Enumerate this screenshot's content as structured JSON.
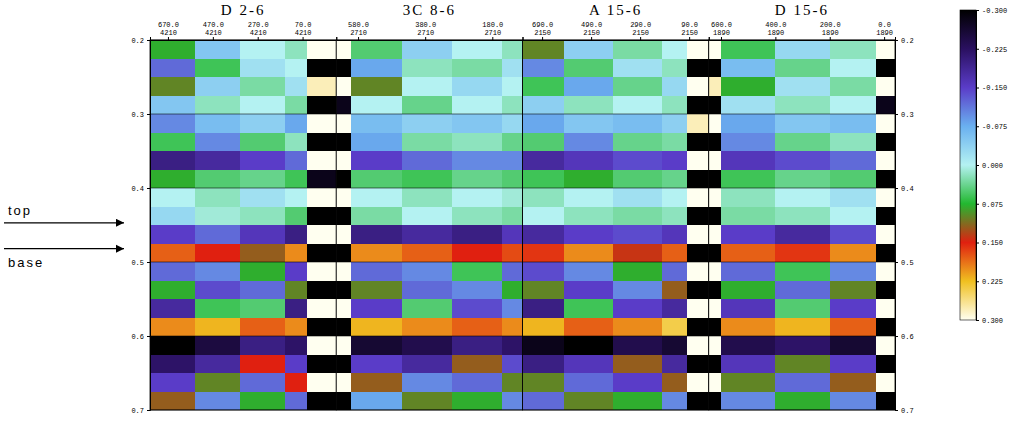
{
  "chart_data": {
    "type": "heatmap",
    "grid": true,
    "ylim": [
      0.2,
      0.7
    ],
    "yticks": [
      0.2,
      0.3,
      0.4,
      0.5,
      0.6,
      0.7
    ],
    "time_edges": [
      0.2,
      0.225,
      0.25,
      0.275,
      0.3,
      0.325,
      0.35,
      0.375,
      0.4,
      0.425,
      0.45,
      0.475,
      0.5,
      0.525,
      0.55,
      0.575,
      0.6,
      0.625,
      0.65,
      0.675,
      0.7
    ],
    "annotations": [
      {
        "text": "top",
        "y": 0.447
      },
      {
        "text": "base",
        "y": 0.482
      }
    ],
    "colorbar": {
      "range": [
        -0.3,
        0.3
      ],
      "ticks": [
        {
          "value": -0.3,
          "label": "-0.300"
        },
        {
          "value": -0.225,
          "label": "-0.225"
        },
        {
          "value": -0.15,
          "label": "-0.150"
        },
        {
          "value": -0.075,
          "label": "-0.075"
        },
        {
          "value": 0,
          "label": "0.000"
        },
        {
          "value": 0.075,
          "label": "0.075"
        },
        {
          "value": 0.15,
          "label": "0.150"
        },
        {
          "value": 0.225,
          "label": "0.225"
        },
        {
          "value": 0.3,
          "label": "0.300"
        }
      ]
    },
    "panels": [
      {
        "title": "D 2-6",
        "cdp": 4210,
        "xlim": [
          750,
          -80
        ],
        "xticks": [
          {
            "value": 670,
            "label": "670.0"
          },
          {
            "value": 470,
            "label": "470.0"
          },
          {
            "value": 270,
            "label": "270.0"
          },
          {
            "value": 70,
            "label": "70.0"
          }
        ],
        "offset_edges": [
          750,
          550,
          350,
          150,
          50,
          -80
        ],
        "cells": [
          [
            0.08,
            -0.05,
            0.0,
            0.02,
            0.3
          ],
          [
            -0.12,
            0.06,
            -0.02,
            0.0,
            -0.3
          ],
          [
            0.1,
            -0.04,
            0.03,
            -0.02,
            0.28
          ],
          [
            -0.05,
            0.02,
            0.0,
            0.03,
            -0.3
          ],
          [
            -0.1,
            -0.06,
            -0.04,
            -0.08,
            0.3
          ],
          [
            0.06,
            -0.1,
            0.05,
            0.02,
            -0.3
          ],
          [
            -0.2,
            -0.18,
            -0.15,
            -0.12,
            0.3
          ],
          [
            0.08,
            0.05,
            0.04,
            0.06,
            -0.28
          ],
          [
            0.0,
            0.02,
            -0.02,
            0.0,
            0.3
          ],
          [
            -0.03,
            0.01,
            0.02,
            0.05,
            -0.3
          ],
          [
            -0.15,
            -0.12,
            -0.16,
            -0.2,
            0.3
          ],
          [
            0.18,
            0.15,
            0.12,
            0.2,
            -0.3
          ],
          [
            -0.12,
            -0.1,
            0.08,
            -0.15,
            0.3
          ],
          [
            0.08,
            -0.14,
            -0.12,
            0.1,
            -0.3
          ],
          [
            -0.18,
            0.06,
            0.05,
            -0.2,
            0.3
          ],
          [
            0.2,
            0.22,
            0.18,
            0.2,
            -0.3
          ],
          [
            -0.3,
            -0.25,
            -0.2,
            -0.22,
            0.3
          ],
          [
            -0.22,
            -0.18,
            0.15,
            -0.15,
            -0.3
          ],
          [
            -0.15,
            0.1,
            -0.12,
            0.15,
            0.3
          ],
          [
            0.12,
            -0.1,
            0.08,
            -0.12,
            -0.3
          ]
        ]
      },
      {
        "title": "3C 8-6",
        "cdp": 2710,
        "xlim": [
          645,
          90
        ],
        "xticks": [
          {
            "value": 580,
            "label": "580.0"
          },
          {
            "value": 380,
            "label": "380.0"
          },
          {
            "value": 180,
            "label": "180.0"
          }
        ],
        "offset_edges": [
          645,
          600,
          450,
          300,
          150,
          90
        ],
        "cells": [
          [
            0.3,
            0.05,
            -0.04,
            0.0,
            0.02
          ],
          [
            -0.3,
            -0.08,
            0.02,
            0.03,
            -0.02
          ],
          [
            0.3,
            0.1,
            0.0,
            -0.03,
            0.0
          ],
          [
            -0.28,
            0.0,
            0.04,
            0.0,
            0.02
          ],
          [
            0.3,
            -0.06,
            -0.04,
            -0.05,
            -0.03
          ],
          [
            -0.3,
            -0.08,
            0.03,
            0.02,
            0.04
          ],
          [
            0.3,
            -0.15,
            -0.12,
            -0.1,
            -0.1
          ],
          [
            -0.3,
            0.05,
            0.06,
            0.04,
            0.05
          ],
          [
            0.3,
            0.0,
            0.02,
            0.0,
            0.01
          ],
          [
            -0.3,
            0.03,
            0.0,
            0.02,
            0.03
          ],
          [
            0.3,
            -0.2,
            -0.18,
            -0.2,
            -0.16
          ],
          [
            -0.3,
            0.2,
            0.18,
            0.15,
            0.17
          ],
          [
            0.3,
            -0.12,
            -0.1,
            0.06,
            -0.12
          ],
          [
            -0.3,
            0.1,
            -0.12,
            -0.1,
            0.08
          ],
          [
            0.3,
            -0.15,
            0.05,
            -0.14,
            -0.1
          ],
          [
            -0.3,
            0.22,
            0.2,
            0.18,
            0.2
          ],
          [
            0.3,
            -0.26,
            -0.24,
            -0.2,
            -0.22
          ],
          [
            -0.3,
            -0.15,
            -0.18,
            0.12,
            -0.14
          ],
          [
            0.3,
            0.12,
            -0.1,
            -0.12,
            0.1
          ],
          [
            -0.3,
            -0.08,
            0.1,
            0.08,
            -0.1
          ]
        ]
      },
      {
        "title": "A 15-6",
        "cdp": 2150,
        "xlim": [
          770,
          10
        ],
        "xticks": [
          {
            "value": 690,
            "label": "690.0"
          },
          {
            "value": 490,
            "label": "490.0"
          },
          {
            "value": 290,
            "label": "290.0"
          },
          {
            "value": 90,
            "label": "90.0"
          }
        ],
        "offset_edges": [
          770,
          600,
          400,
          200,
          100,
          10
        ],
        "cells": [
          [
            0.1,
            -0.04,
            0.03,
            0.0,
            0.3
          ],
          [
            -0.1,
            0.05,
            -0.02,
            0.02,
            -0.3
          ],
          [
            0.06,
            -0.08,
            0.04,
            -0.03,
            0.3
          ],
          [
            -0.04,
            0.02,
            0.0,
            0.02,
            -0.3
          ],
          [
            -0.08,
            -0.05,
            -0.06,
            -0.04,
            0.28
          ],
          [
            0.05,
            -0.1,
            0.04,
            0.03,
            -0.3
          ],
          [
            -0.18,
            -0.16,
            -0.14,
            -0.15,
            0.3
          ],
          [
            0.06,
            0.08,
            0.05,
            0.04,
            -0.3
          ],
          [
            0.02,
            0.0,
            -0.02,
            0.0,
            0.3
          ],
          [
            0.0,
            0.02,
            0.03,
            0.02,
            -0.3
          ],
          [
            -0.18,
            -0.15,
            -0.14,
            -0.16,
            0.3
          ],
          [
            0.16,
            0.2,
            0.14,
            0.18,
            -0.3
          ],
          [
            -0.14,
            -0.1,
            0.08,
            -0.12,
            0.3
          ],
          [
            0.1,
            -0.15,
            -0.1,
            0.12,
            -0.3
          ],
          [
            -0.2,
            0.06,
            -0.15,
            -0.18,
            0.3
          ],
          [
            0.22,
            0.18,
            0.2,
            0.24,
            -0.3
          ],
          [
            -0.28,
            -0.3,
            -0.24,
            -0.26,
            0.3
          ],
          [
            -0.2,
            -0.16,
            0.12,
            -0.18,
            -0.3
          ],
          [
            0.1,
            -0.12,
            -0.15,
            0.12,
            0.3
          ],
          [
            -0.12,
            0.1,
            0.08,
            -0.1,
            -0.3
          ]
        ]
      },
      {
        "title": "D 15-6",
        "cdp": 1890,
        "xlim": [
          645,
          -40
        ],
        "xticks": [
          {
            "value": 600,
            "label": "600.0"
          },
          {
            "value": 400,
            "label": "400.0"
          },
          {
            "value": 200,
            "label": "200.0"
          },
          {
            "value": 0,
            "label": "0.0"
          }
        ],
        "offset_edges": [
          645,
          600,
          400,
          200,
          30,
          -40
        ],
        "cells": [
          [
            0.3,
            0.06,
            -0.03,
            0.02,
            0.3
          ],
          [
            -0.3,
            -0.06,
            0.04,
            0.0,
            -0.3
          ],
          [
            0.28,
            0.08,
            -0.02,
            0.03,
            0.3
          ],
          [
            -0.3,
            -0.02,
            0.02,
            0.0,
            -0.28
          ],
          [
            0.3,
            -0.08,
            -0.05,
            -0.06,
            0.3
          ],
          [
            -0.3,
            -0.1,
            0.04,
            0.02,
            -0.3
          ],
          [
            0.3,
            -0.16,
            -0.14,
            -0.12,
            0.3
          ],
          [
            -0.3,
            0.06,
            0.04,
            0.05,
            -0.3
          ],
          [
            0.3,
            0.02,
            0.0,
            -0.02,
            0.3
          ],
          [
            -0.3,
            0.03,
            0.02,
            0.0,
            -0.3
          ],
          [
            0.3,
            -0.15,
            -0.18,
            -0.14,
            0.3
          ],
          [
            -0.3,
            0.18,
            0.16,
            0.2,
            -0.3
          ],
          [
            0.3,
            -0.12,
            0.06,
            -0.1,
            0.3
          ],
          [
            -0.3,
            0.08,
            -0.12,
            0.1,
            -0.3
          ],
          [
            0.3,
            -0.16,
            0.05,
            -0.15,
            0.3
          ],
          [
            -0.3,
            0.2,
            0.22,
            0.18,
            -0.3
          ],
          [
            0.3,
            -0.24,
            -0.22,
            -0.26,
            0.3
          ],
          [
            -0.3,
            -0.16,
            0.1,
            -0.15,
            -0.3
          ],
          [
            0.3,
            0.1,
            -0.12,
            0.12,
            0.3
          ],
          [
            -0.3,
            -0.1,
            0.08,
            -0.1,
            -0.3
          ]
        ]
      }
    ]
  }
}
